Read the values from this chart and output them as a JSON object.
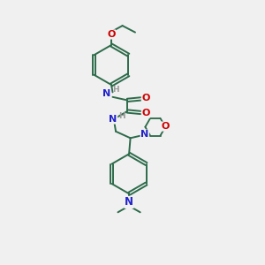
{
  "bg_color": "#f0f0f0",
  "bond_color": "#2d6b4a",
  "atom_colors": {
    "N": "#2222cc",
    "O": "#cc0000",
    "C": "#2d6b4a",
    "H": "#aaaaaa"
  },
  "lw": 1.4,
  "dbl_off": 0.055,
  "ring_r": 0.75,
  "morph_r": 0.38
}
